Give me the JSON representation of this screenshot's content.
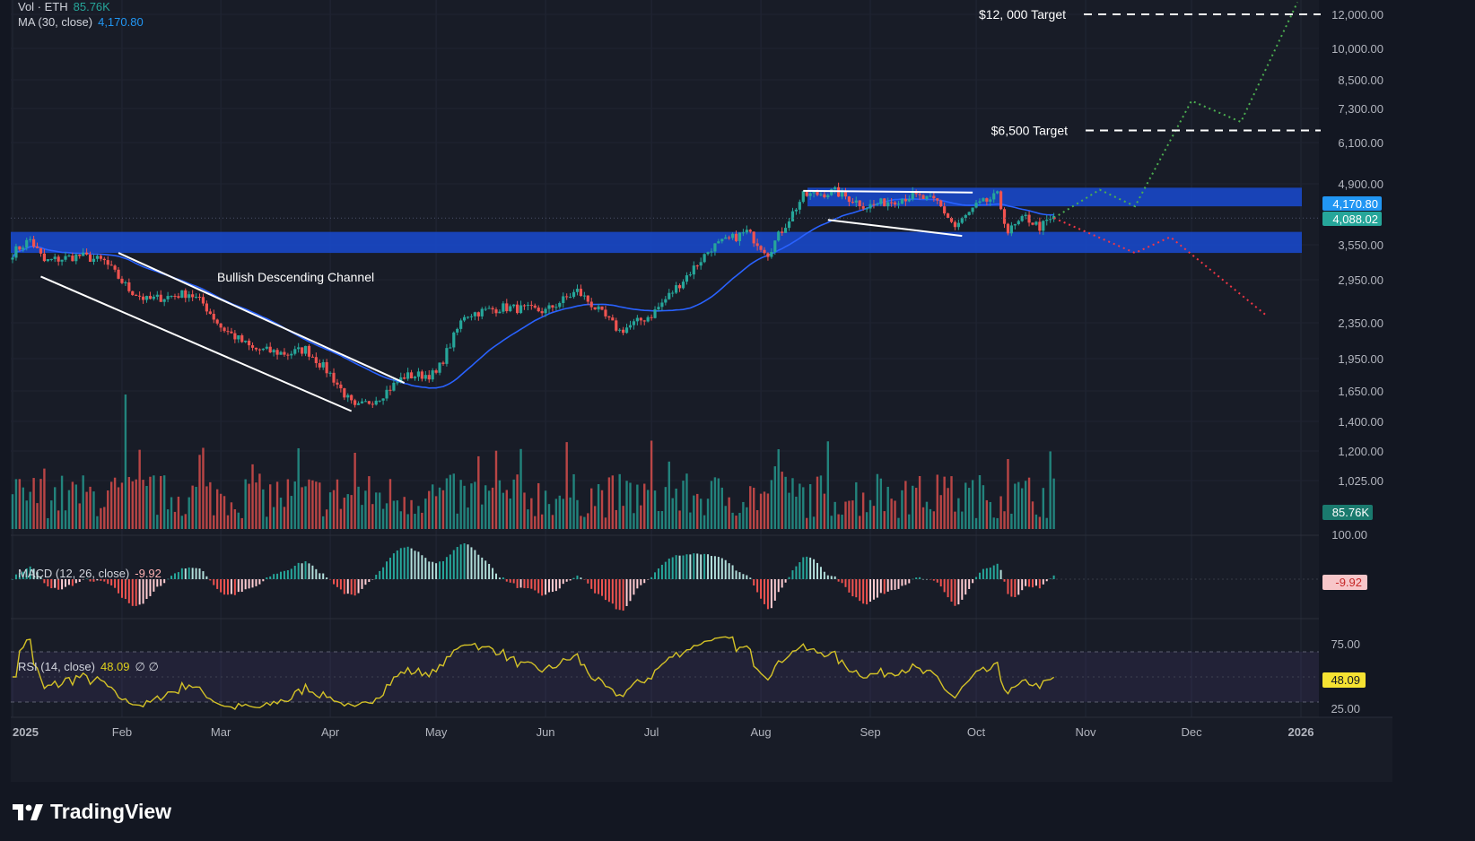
{
  "legend": {
    "vol_label": "Vol · ETH",
    "vol_value": "85.76K",
    "ma_label": "MA (30, close)",
    "ma_value": "4,170.80",
    "macd_label": "MACD (12, 26, close)",
    "macd_value": "-9.92",
    "rsi_label": "RSI (14, close)",
    "rsi_value": "48.09",
    "rsi_extra": "∅  ∅"
  },
  "brand": "TradingView",
  "colors": {
    "background": "#131722",
    "up": "#26a69a",
    "down": "#ef5350",
    "zone": "#1848c8",
    "ma": "#2962ff",
    "rsi": "#d4c227",
    "bull_path": "#4caf50",
    "bear_path": "#f23645"
  },
  "chart_data": {
    "type": "candlestick",
    "symbol": "ETH",
    "y_scale": "log",
    "price_ticks": [
      "12,000.00",
      "10,000.00",
      "8,500.00",
      "7,300.00",
      "6,100.00",
      "4,900.00",
      "3,550.00",
      "2,950.00",
      "2,350.00",
      "1,950.00",
      "1,650.00",
      "1,400.00",
      "1,200.00",
      "1,025.00"
    ],
    "price_badges": [
      {
        "text": "4,170.80",
        "value": 4170.8,
        "color": "#2196f3"
      },
      {
        "text": "4,088.02",
        "value": 4088.02,
        "color": "#26a69a"
      }
    ],
    "volume_badge": "85.76K",
    "x_ticks": [
      "2025",
      "Feb",
      "Mar",
      "Apr",
      "May",
      "Jun",
      "Jul",
      "Aug",
      "Sep",
      "Oct",
      "Nov",
      "Dec",
      "2026"
    ],
    "annotations": [
      {
        "text": "$12, 000 Target",
        "price": 12000
      },
      {
        "text": "$6,500 Target",
        "price": 6500
      },
      {
        "text": "Bullish Descending Channel"
      }
    ],
    "zones": [
      {
        "low": 4350,
        "high": 4800
      },
      {
        "low": 3400,
        "high": 3800
      }
    ],
    "price_anchors": [
      [
        "2025-01-01",
        3400
      ],
      [
        "2025-01-06",
        3650
      ],
      [
        "2025-01-10",
        3250
      ],
      [
        "2025-01-20",
        3350
      ],
      [
        "2025-01-27",
        3250
      ],
      [
        "2025-02-03",
        2800
      ],
      [
        "2025-02-08",
        2650
      ],
      [
        "2025-02-20",
        2750
      ],
      [
        "2025-02-24",
        2600
      ],
      [
        "2025-03-01",
        2300
      ],
      [
        "2025-03-10",
        2050
      ],
      [
        "2025-03-20",
        2000
      ],
      [
        "2025-03-25",
        2050
      ],
      [
        "2025-04-01",
        1800
      ],
      [
        "2025-04-08",
        1500
      ],
      [
        "2025-04-15",
        1600
      ],
      [
        "2025-04-22",
        1780
      ],
      [
        "2025-05-01",
        1800
      ],
      [
        "2025-05-09",
        2450
      ],
      [
        "2025-05-20",
        2550
      ],
      [
        "2025-06-01",
        2500
      ],
      [
        "2025-06-10",
        2780
      ],
      [
        "2025-06-22",
        2250
      ],
      [
        "2025-07-01",
        2450
      ],
      [
        "2025-07-10",
        2950
      ],
      [
        "2025-07-18",
        3500
      ],
      [
        "2025-07-28",
        3800
      ],
      [
        "2025-08-03",
        3400
      ],
      [
        "2025-08-13",
        4600
      ],
      [
        "2025-08-22",
        4700
      ],
      [
        "2025-08-31",
        4350
      ],
      [
        "2025-09-13",
        4600
      ],
      [
        "2025-09-20",
        4450
      ],
      [
        "2025-09-25",
        3900
      ],
      [
        "2025-10-01",
        4350
      ],
      [
        "2025-10-07",
        4600
      ],
      [
        "2025-10-10",
        3800
      ],
      [
        "2025-10-15",
        4100
      ],
      [
        "2025-10-19",
        3900
      ],
      [
        "2025-10-23",
        4088
      ]
    ],
    "bull_scenario": [
      [
        "2025-10-23",
        4088
      ],
      [
        "2025-11-05",
        4750
      ],
      [
        "2025-11-15",
        4350
      ],
      [
        "2025-12-01",
        7600
      ],
      [
        "2025-12-15",
        6800
      ],
      [
        "2025-12-31",
        12800
      ]
    ],
    "bear_scenario": [
      [
        "2025-10-23",
        4088
      ],
      [
        "2025-11-15",
        3400
      ],
      [
        "2025-11-25",
        3700
      ],
      [
        "2025-12-22",
        2450
      ]
    ],
    "channel_upper": [
      [
        "2025-01-31",
        3400
      ],
      [
        "2025-04-22",
        1720
      ]
    ],
    "channel_lower": [
      [
        "2025-01-09",
        3000
      ],
      [
        "2025-04-07",
        1480
      ]
    ],
    "wedge_upper": [
      [
        "2025-08-13",
        4720
      ],
      [
        "2025-09-30",
        4680
      ]
    ],
    "wedge_lower": [
      [
        "2025-08-20",
        4050
      ],
      [
        "2025-09-27",
        3720
      ]
    ],
    "macd_ticks": [
      "100.00"
    ],
    "rsi_ticks": [
      "75.00",
      "25.00"
    ]
  }
}
